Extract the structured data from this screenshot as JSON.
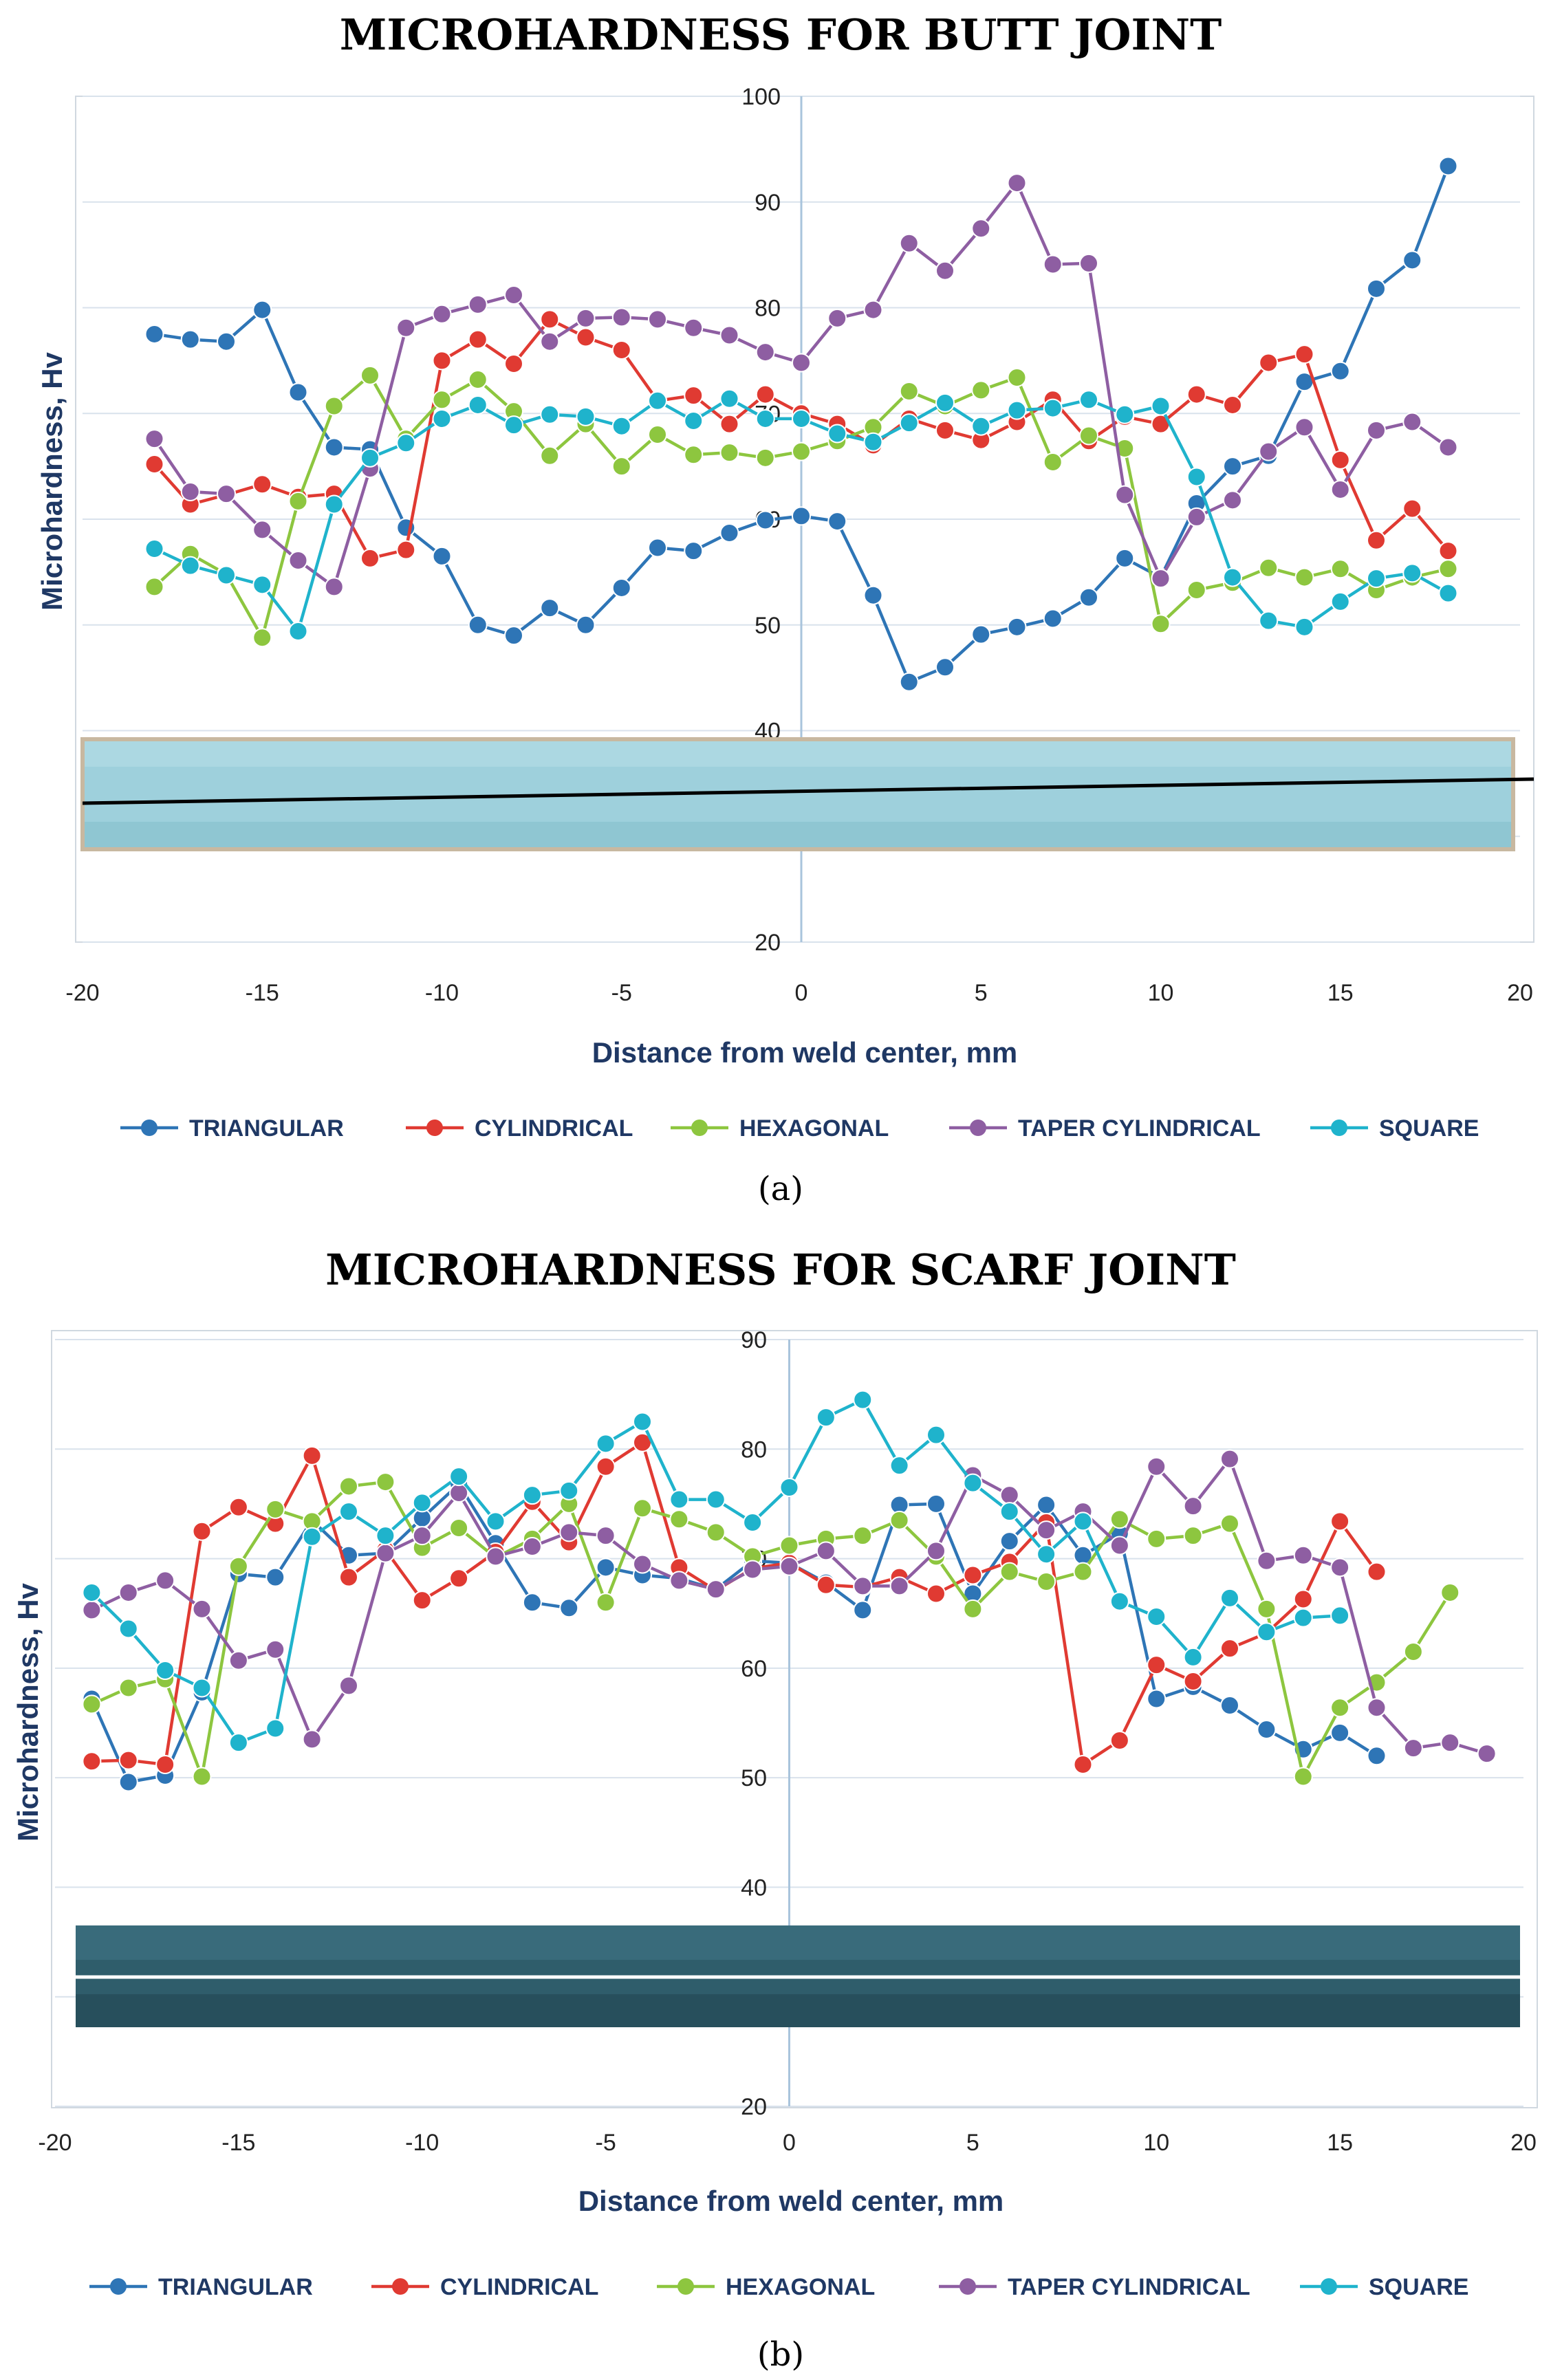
{
  "figures": [
    {
      "title": "MICROHARDNESS FOR BUTT JOINT",
      "caption": "(a)",
      "xlabel": "Distance from weld center, mm",
      "ylabel": "Microhardness, Hv",
      "photo": "butt-joint-specimen-photo"
    },
    {
      "title": "MICROHARDNESS FOR SCARF JOINT",
      "caption": "(b)",
      "xlabel": "Distance from weld center, mm",
      "ylabel": "Microhardness, Hv",
      "photo": "scarf-joint-specimen-photo"
    }
  ],
  "colors": {
    "TRIANGULAR": "#2e75b6",
    "CYLINDRICAL": "#e03a32",
    "HEXAGONAL": "#8dc63f",
    "TAPER CYLINDRICAL": "#8e5ea2",
    "SQUARE": "#1fb3cc",
    "butt_photo": "#9ed0dc",
    "scarf_photo": "#2f5d6b"
  },
  "chart_data": [
    {
      "type": "line",
      "title": "MICROHARDNESS FOR BUTT JOINT",
      "xlabel": "Distance from weld center, mm",
      "ylabel": "Microhardness, Hv",
      "xlim": [
        -20,
        20
      ],
      "ylim": [
        20,
        100
      ],
      "xticks": [
        -20,
        -15,
        -10,
        -5,
        0,
        5,
        10,
        15,
        20
      ],
      "yticks": [
        20,
        40,
        50,
        60,
        70,
        80,
        90,
        100
      ],
      "grid": true,
      "legend": "bottom",
      "x": [
        -18,
        -17,
        -16,
        -15,
        -14,
        -13,
        -12,
        -11,
        -10,
        -9,
        -8,
        -7,
        -6,
        -5,
        -4,
        -3,
        -2,
        -1,
        0,
        1,
        2,
        3,
        4,
        5,
        6,
        7,
        8,
        9,
        10,
        11,
        12,
        13,
        14,
        15,
        16,
        17,
        18
      ],
      "series": [
        {
          "name": "TRIANGULAR",
          "values": [
            77.5,
            77,
            76.8,
            79.8,
            72,
            66.8,
            66.6,
            59.2,
            56.5,
            50,
            49,
            51.6,
            50,
            53.5,
            57.3,
            57,
            58.7,
            59.9,
            60.3,
            59.8,
            52.8,
            44.6,
            46,
            49.1,
            49.8,
            50.6,
            52.6,
            56.3,
            54.5,
            61.5,
            65,
            66,
            73,
            74,
            81.8,
            84.5,
            93.4
          ]
        },
        {
          "name": "CYLINDRICAL",
          "values": [
            65.2,
            61.4,
            62.3,
            63.3,
            62.1,
            62.4,
            56.3,
            57.1,
            75,
            77,
            74.7,
            78.9,
            77.2,
            76,
            71.2,
            71.7,
            69,
            71.8,
            70,
            69,
            67,
            69.5,
            68.4,
            67.5,
            69.2,
            71.3,
            67.4,
            69.7,
            69,
            71.8,
            70.8,
            74.8,
            75.6,
            65.6,
            58,
            61,
            57
          ]
        },
        {
          "name": "HEXAGONAL",
          "values": [
            53.6,
            56.7,
            54.8,
            48.8,
            61.7,
            70.7,
            73.6,
            67.6,
            71.3,
            73.2,
            70.2,
            66,
            69,
            65,
            68,
            66.1,
            66.3,
            65.8,
            66.4,
            67.4,
            68.7,
            72.1,
            70.7,
            72.2,
            73.4,
            65.4,
            67.9,
            66.7,
            50.1,
            53.3,
            54,
            55.4,
            54.5,
            55.3,
            53.3,
            54.5,
            55.3
          ]
        },
        {
          "name": "TAPER CYLINDRICAL",
          "values": [
            67.6,
            62.6,
            62.4,
            59,
            56.1,
            53.6,
            64.8,
            78.1,
            79.4,
            80.3,
            81.2,
            76.8,
            79,
            79.1,
            78.9,
            78.1,
            77.4,
            75.8,
            74.8,
            79,
            79.8,
            86.1,
            83.5,
            87.5,
            91.8,
            84.1,
            84.2,
            62.3,
            54.4,
            60.2,
            61.8,
            66.4,
            68.7,
            62.8,
            68.4,
            69.2,
            66.8
          ]
        },
        {
          "name": "SQUARE",
          "values": [
            57.2,
            55.6,
            54.7,
            53.8,
            49.4,
            61.4,
            65.8,
            67.2,
            69.5,
            70.8,
            68.9,
            69.9,
            69.7,
            68.8,
            71.2,
            69.3,
            71.4,
            69.5,
            69.5,
            68.1,
            67.3,
            69.1,
            71,
            68.8,
            70.3,
            70.5,
            71.3,
            69.9,
            70.7,
            64,
            54.5,
            50.4,
            49.8,
            52.2,
            54.4,
            54.9,
            53
          ]
        }
      ]
    },
    {
      "type": "line",
      "title": "MICROHARDNESS FOR SCARF JOINT",
      "xlabel": "Distance from weld center, mm",
      "ylabel": "Microhardness, Hv",
      "xlim": [
        -20,
        20
      ],
      "ylim": [
        20,
        90
      ],
      "xticks": [
        -20,
        -15,
        -10,
        -5,
        0,
        5,
        10,
        15,
        20
      ],
      "yticks": [
        20,
        40,
        50,
        60,
        70,
        80,
        90
      ],
      "grid": true,
      "legend": "bottom",
      "series": [
        {
          "name": "TRIANGULAR",
          "x": [
            -19,
            -18,
            -17,
            -16,
            -15,
            -14,
            -13,
            -12,
            -11,
            -10,
            -9,
            -8,
            -7,
            -6,
            -5,
            -4,
            -3,
            -2,
            -1,
            0,
            1,
            2,
            3,
            4,
            5,
            6,
            7,
            8,
            9,
            10,
            11,
            12,
            13,
            14,
            15,
            16
          ],
          "values": [
            57.2,
            49.6,
            50.2,
            57.8,
            68.6,
            68.3,
            73.5,
            70.3,
            70.5,
            73.7,
            76.8,
            71.4,
            66,
            65.5,
            69.2,
            68.5,
            68.2,
            67.2,
            69.8,
            69.6,
            67.8,
            65.3,
            74.9,
            75,
            66.8,
            71.6,
            74.9,
            70.3,
            72.3,
            57.2,
            58.3,
            56.6,
            54.4,
            52.6,
            54.1,
            52
          ]
        },
        {
          "name": "CYLINDRICAL",
          "x": [
            -19,
            -18,
            -17,
            -16,
            -15,
            -14,
            -13,
            -12,
            -11,
            -10,
            -9,
            -8,
            -7,
            -6,
            -5,
            -4,
            -3,
            -2,
            -1,
            0,
            1,
            2,
            3,
            4,
            5,
            6,
            7,
            8,
            9,
            10,
            11,
            12,
            13,
            14,
            15,
            16
          ],
          "values": [
            51.5,
            51.6,
            51.2,
            72.5,
            74.7,
            73.2,
            79.4,
            68.3,
            70.8,
            66.2,
            68.2,
            70.6,
            75.2,
            71.5,
            78.4,
            80.6,
            69.2,
            67.1,
            69.1,
            69.6,
            67.6,
            67.4,
            68.3,
            66.8,
            68.5,
            69.7,
            73.3,
            51.2,
            53.4,
            60.3,
            58.8,
            61.8,
            63.2,
            66.3,
            73.4,
            68.8
          ]
        },
        {
          "name": "HEXAGONAL",
          "x": [
            -19,
            -18,
            -17,
            -16,
            -15,
            -14,
            -13,
            -12,
            -11,
            -10,
            -9,
            -8,
            -7,
            -6,
            -5,
            -4,
            -3,
            -2,
            -1,
            0,
            1,
            2,
            3,
            4,
            5,
            6,
            7,
            8,
            9,
            10,
            11,
            12,
            13,
            14,
            15,
            16,
            17,
            18
          ],
          "values": [
            56.7,
            58.2,
            59,
            50.1,
            69.3,
            74.5,
            73.4,
            76.6,
            77,
            71,
            72.8,
            70.1,
            71.8,
            75,
            66,
            74.6,
            73.6,
            72.4,
            70.2,
            71.2,
            71.8,
            72.1,
            73.5,
            70.2,
            65.4,
            68.8,
            67.9,
            68.8,
            73.6,
            71.8,
            72.1,
            73.2,
            65.4,
            50.1,
            56.4,
            58.7,
            61.5,
            66.9
          ]
        },
        {
          "name": "TAPER CYLINDRICAL",
          "x": [
            -19,
            -18,
            -17,
            -16,
            -15,
            -14,
            -13,
            -12,
            -11,
            -10,
            -9,
            -8,
            -7,
            -6,
            -5,
            -4,
            -3,
            -2,
            -1,
            0,
            1,
            2,
            3,
            4,
            5,
            6,
            7,
            8,
            9,
            10,
            11,
            12,
            13,
            14,
            15,
            16,
            17,
            18,
            19
          ],
          "values": [
            65.3,
            66.9,
            68,
            65.4,
            60.7,
            61.7,
            53.5,
            58.4,
            70.5,
            72.1,
            76,
            70.2,
            71.1,
            72.4,
            72.1,
            69.5,
            68,
            67.2,
            69,
            69.3,
            70.7,
            67.5,
            67.5,
            70.7,
            77.6,
            75.8,
            72.6,
            74.3,
            71.2,
            78.4,
            74.8,
            79.1,
            69.8,
            70.3,
            69.2,
            56.4,
            52.7,
            53.2,
            52.2
          ]
        },
        {
          "name": "SQUARE",
          "x": [
            -19,
            -18,
            -17,
            -16,
            -15,
            -14,
            -13,
            -12,
            -11,
            -10,
            -9,
            -8,
            -7,
            -6,
            -5,
            -4,
            -3,
            -2,
            -1,
            0,
            1,
            2,
            3,
            4,
            5,
            6,
            7,
            8,
            9,
            10,
            11,
            12,
            13,
            14,
            15
          ],
          "values": [
            66.9,
            63.6,
            59.8,
            58.2,
            53.2,
            54.5,
            72,
            74.3,
            72.1,
            75.1,
            77.5,
            73.4,
            75.8,
            76.2,
            80.5,
            82.5,
            75.4,
            75.4,
            73.3,
            76.5,
            82.9,
            84.5,
            78.5,
            81.3,
            76.9,
            74.3,
            70.4,
            73.4,
            66.1,
            64.7,
            61,
            66.4,
            63.3,
            64.6,
            64.8
          ]
        }
      ]
    }
  ]
}
